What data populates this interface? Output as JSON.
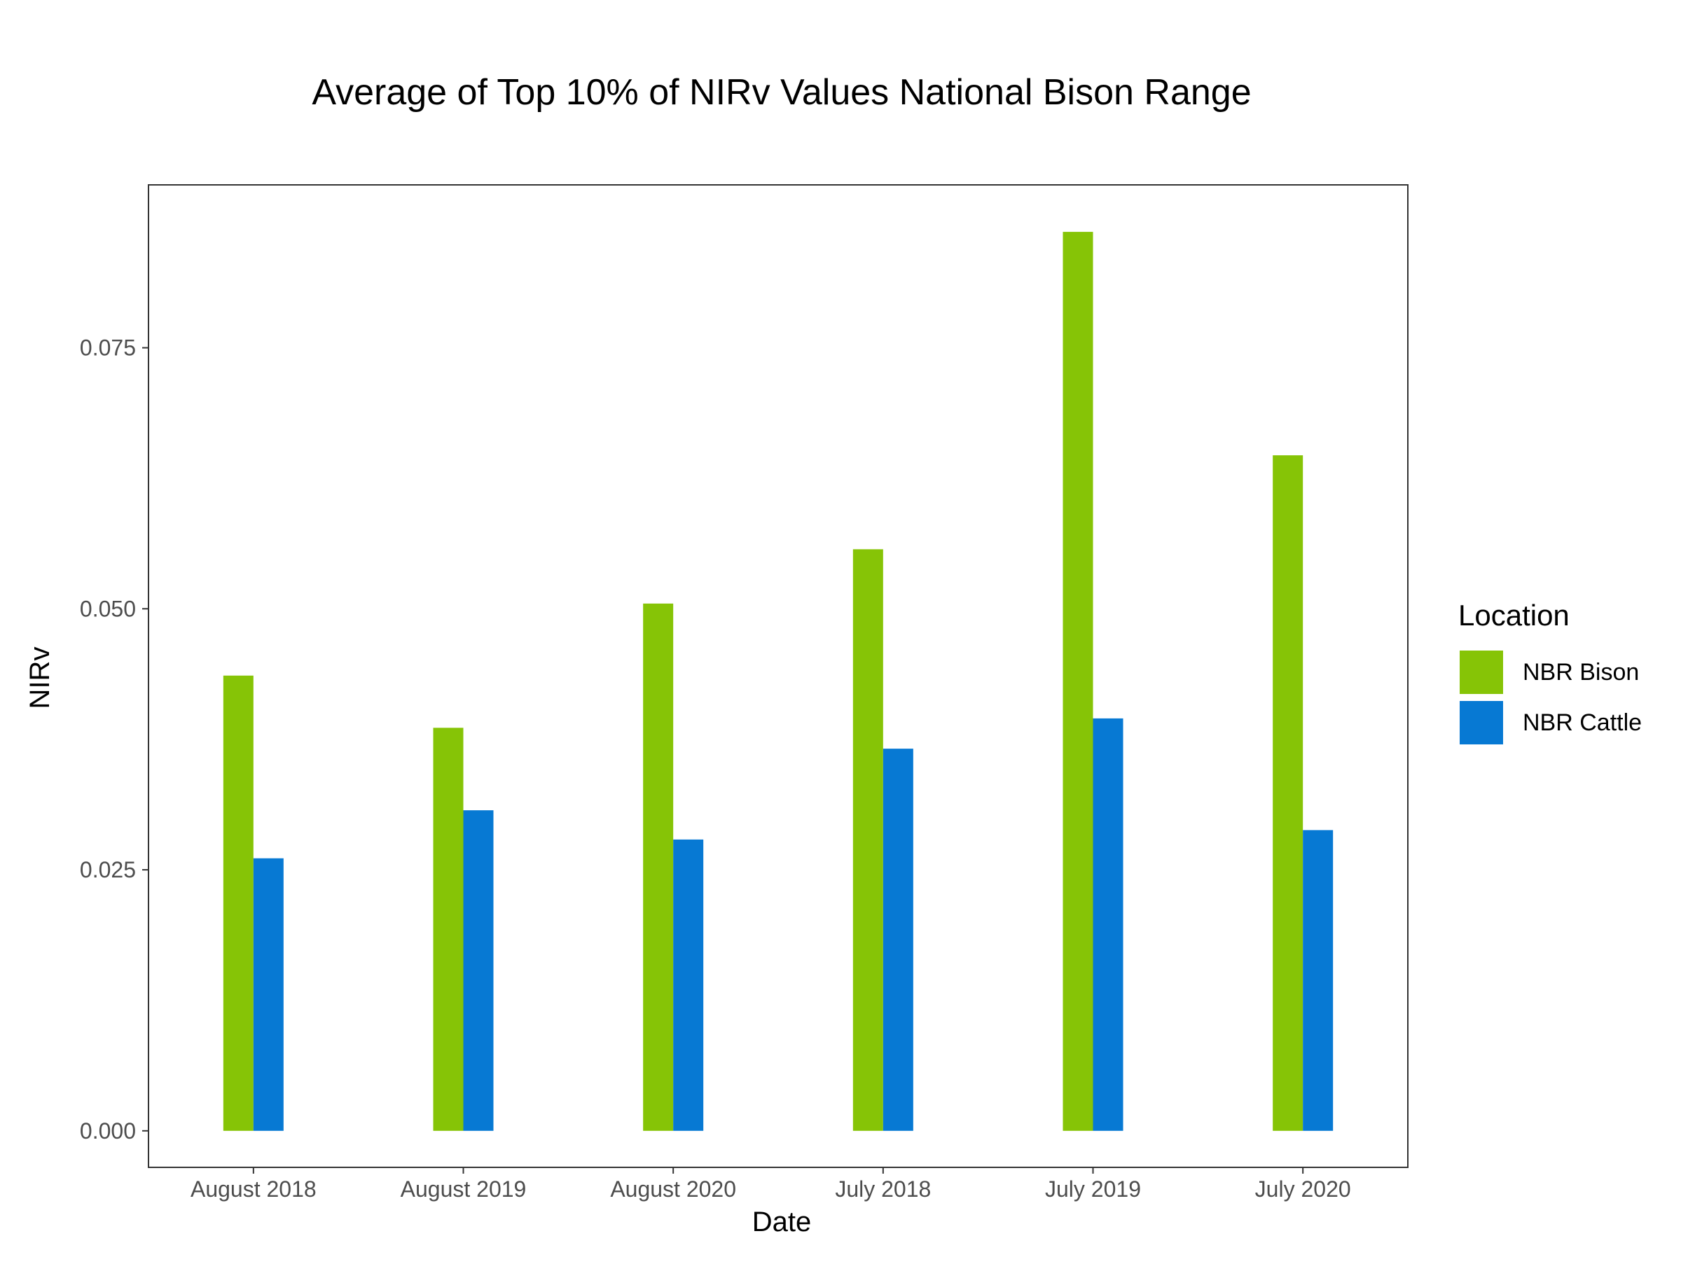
{
  "chart_data": {
    "type": "bar",
    "title": "Average of Top 10% of NIRv Values National Bison Range",
    "xlabel": "Date",
    "ylabel": "NIRv",
    "categories": [
      "August 2018",
      "August 2019",
      "August 2020",
      "July 2018",
      "July 2019",
      "July 2020"
    ],
    "series": [
      {
        "name": "NBR Bison",
        "color": "#86c406",
        "values": [
          0.0436,
          0.0386,
          0.0505,
          0.0557,
          0.0861,
          0.0647
        ]
      },
      {
        "name": "NBR Cattle",
        "color": "#0779d3",
        "values": [
          0.0261,
          0.0307,
          0.0279,
          0.0366,
          0.0395,
          0.0288
        ]
      }
    ],
    "ylim": [
      -0.0035,
      0.0906
    ],
    "yticks": [
      0,
      0.025,
      0.05,
      0.075
    ],
    "ytick_labels": [
      "0.000",
      "0.025",
      "0.050",
      "0.075"
    ],
    "legend": {
      "title": "Location",
      "placement": "right"
    },
    "grid": false
  }
}
